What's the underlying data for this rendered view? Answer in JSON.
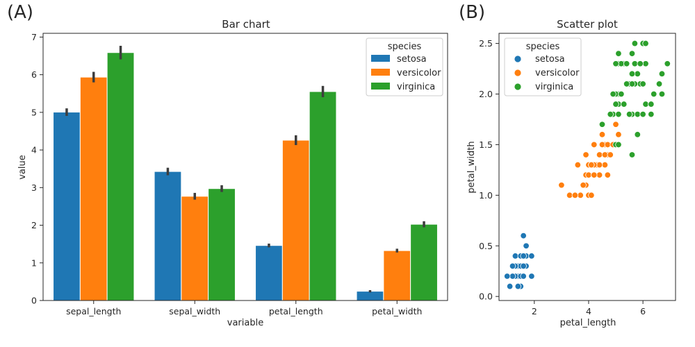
{
  "figure": {
    "panel_labels": [
      "(A)",
      "(B)"
    ]
  },
  "chart_data": [
    {
      "type": "bar",
      "title": "Bar chart",
      "xlabel": "variable",
      "ylabel": "value",
      "categories": [
        "sepal_length",
        "sepal_width",
        "petal_length",
        "petal_width"
      ],
      "ylim": [
        0,
        7.1
      ],
      "yticks": [
        0,
        1,
        2,
        3,
        4,
        5,
        6,
        7
      ],
      "grid": false,
      "legend": {
        "title": "species",
        "placement": "top-right"
      },
      "series": [
        {
          "name": "setosa",
          "color": "#1f77b4",
          "values": [
            5.006,
            3.428,
            1.462,
            0.246
          ],
          "err": [
            0.1,
            0.1,
            0.05,
            0.03
          ]
        },
        {
          "name": "versicolor",
          "color": "#ff7f0e",
          "values": [
            5.936,
            2.77,
            4.26,
            1.326
          ],
          "err": [
            0.14,
            0.09,
            0.13,
            0.05
          ]
        },
        {
          "name": "virginica",
          "color": "#2ca02c",
          "values": [
            6.588,
            2.974,
            5.552,
            2.026
          ],
          "err": [
            0.18,
            0.09,
            0.15,
            0.08
          ]
        }
      ]
    },
    {
      "type": "scatter",
      "title": "Scatter plot",
      "xlabel": "petal_length",
      "ylabel": "petal_width",
      "xlim": [
        0.7,
        7.2
      ],
      "ylim": [
        -0.04,
        2.6
      ],
      "xticks": [
        2,
        4,
        6
      ],
      "yticks": [
        0.0,
        0.5,
        1.0,
        1.5,
        2.0,
        2.5
      ],
      "ytick_labels": [
        "0.0",
        "0.5",
        "1.0",
        "1.5",
        "2.0",
        "2.5"
      ],
      "grid": false,
      "legend": {
        "title": "species",
        "placement": "top-left"
      },
      "series": [
        {
          "name": "setosa",
          "color": "#1f77b4",
          "points": [
            [
              1.4,
              0.2
            ],
            [
              1.3,
              0.2
            ],
            [
              1.5,
              0.2
            ],
            [
              1.7,
              0.4
            ],
            [
              1.4,
              0.3
            ],
            [
              1.5,
              0.1
            ],
            [
              1.6,
              0.2
            ],
            [
              1.1,
              0.1
            ],
            [
              1.2,
              0.2
            ],
            [
              1.3,
              0.4
            ],
            [
              1.7,
              0.3
            ],
            [
              1.5,
              0.4
            ],
            [
              1.0,
              0.2
            ],
            [
              1.7,
              0.5
            ],
            [
              1.9,
              0.2
            ],
            [
              1.6,
              0.4
            ],
            [
              1.5,
              0.3
            ],
            [
              1.4,
              0.1
            ],
            [
              1.6,
              0.6
            ],
            [
              1.9,
              0.4
            ],
            [
              1.3,
              0.3
            ],
            [
              1.6,
              0.3
            ],
            [
              1.2,
              0.3
            ]
          ]
        },
        {
          "name": "versicolor",
          "color": "#ff7f0e",
          "points": [
            [
              4.7,
              1.4
            ],
            [
              4.5,
              1.5
            ],
            [
              4.9,
              1.5
            ],
            [
              4.0,
              1.3
            ],
            [
              4.6,
              1.5
            ],
            [
              3.3,
              1.0
            ],
            [
              4.6,
              1.3
            ],
            [
              3.9,
              1.4
            ],
            [
              3.5,
              1.0
            ],
            [
              4.2,
              1.5
            ],
            [
              4.0,
              1.0
            ],
            [
              4.7,
              1.4
            ],
            [
              3.6,
              1.3
            ],
            [
              4.4,
              1.4
            ],
            [
              4.5,
              1.5
            ],
            [
              4.1,
              1.0
            ],
            [
              3.9,
              1.1
            ],
            [
              4.8,
              1.8
            ],
            [
              4.0,
              1.3
            ],
            [
              4.9,
              1.5
            ],
            [
              4.7,
              1.2
            ],
            [
              4.3,
              1.3
            ],
            [
              4.4,
              1.4
            ],
            [
              5.0,
              1.7
            ],
            [
              3.8,
              1.1
            ],
            [
              3.7,
              1.0
            ],
            [
              3.9,
              1.2
            ],
            [
              5.1,
              1.6
            ],
            [
              4.5,
              1.6
            ],
            [
              4.7,
              1.5
            ],
            [
              4.4,
              1.3
            ],
            [
              4.1,
              1.3
            ],
            [
              4.0,
              1.2
            ],
            [
              4.4,
              1.2
            ],
            [
              4.6,
              1.4
            ],
            [
              4.2,
              1.2
            ],
            [
              4.2,
              1.3
            ],
            [
              3.0,
              1.1
            ],
            [
              4.1,
              1.3
            ],
            [
              3.5,
              1.0
            ],
            [
              4.9,
              1.5
            ],
            [
              4.8,
              1.4
            ]
          ]
        },
        {
          "name": "virginica",
          "color": "#2ca02c",
          "points": [
            [
              6.0,
              2.5
            ],
            [
              5.1,
              1.9
            ],
            [
              5.9,
              2.1
            ],
            [
              5.6,
              1.8
            ],
            [
              5.8,
              2.2
            ],
            [
              6.6,
              2.1
            ],
            [
              4.5,
              1.7
            ],
            [
              6.3,
              1.8
            ],
            [
              5.8,
              1.8
            ],
            [
              6.1,
              2.5
            ],
            [
              5.1,
              2.0
            ],
            [
              5.3,
              1.9
            ],
            [
              5.5,
              2.1
            ],
            [
              5.0,
              2.0
            ],
            [
              5.1,
              2.4
            ],
            [
              5.3,
              2.3
            ],
            [
              5.5,
              1.8
            ],
            [
              6.7,
              2.2
            ],
            [
              6.9,
              2.3
            ],
            [
              5.0,
              1.5
            ],
            [
              5.7,
              2.3
            ],
            [
              4.9,
              2.0
            ],
            [
              6.7,
              2.0
            ],
            [
              4.9,
              1.8
            ],
            [
              5.7,
              2.1
            ],
            [
              6.0,
              1.8
            ],
            [
              4.8,
              1.8
            ],
            [
              4.9,
              1.8
            ],
            [
              5.6,
              2.1
            ],
            [
              5.8,
              1.6
            ],
            [
              6.1,
              1.9
            ],
            [
              6.4,
              2.0
            ],
            [
              5.6,
              2.2
            ],
            [
              5.1,
              1.5
            ],
            [
              5.6,
              1.4
            ],
            [
              6.1,
              2.3
            ],
            [
              5.6,
              2.4
            ],
            [
              5.5,
              1.8
            ],
            [
              4.8,
              1.8
            ],
            [
              5.4,
              2.1
            ],
            [
              5.6,
              2.4
            ],
            [
              5.1,
              2.3
            ],
            [
              5.9,
              2.3
            ],
            [
              5.7,
              2.5
            ],
            [
              5.2,
              2.3
            ],
            [
              5.0,
              1.9
            ],
            [
              5.2,
              2.0
            ],
            [
              5.4,
              2.3
            ],
            [
              5.1,
              1.8
            ],
            [
              6.3,
              1.9
            ],
            [
              6.0,
              2.1
            ],
            [
              5.0,
              2.3
            ]
          ]
        }
      ]
    }
  ]
}
